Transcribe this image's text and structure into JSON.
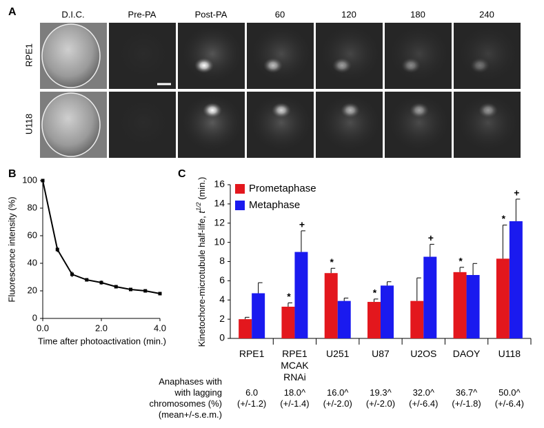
{
  "panel_labels": [
    "A",
    "B",
    "C"
  ],
  "panel_a": {
    "columns": [
      "D.I.C.",
      "Pre-PA",
      "Post-PA",
      "60",
      "120",
      "180",
      "240"
    ],
    "rows": [
      "RPE1",
      "U118"
    ]
  },
  "chart_data": [
    {
      "type": "line",
      "x_label": "Time after photoactivation (min.)",
      "y_label": "Fluorescence intensity (%)",
      "x": [
        0,
        0.5,
        1.0,
        1.5,
        2.0,
        2.5,
        3.0,
        3.5,
        4.0
      ],
      "values": [
        100,
        50,
        32,
        28,
        26,
        23,
        21,
        20,
        18
      ],
      "errors": [
        1,
        2,
        2,
        1,
        1.5,
        1,
        1,
        1,
        1
      ],
      "color": "#000000",
      "xlim": [
        0,
        4
      ],
      "ylim": [
        0,
        100
      ],
      "xticks": [
        {
          "value": 0,
          "label": "0.0"
        },
        {
          "value": 2,
          "label": "2.0"
        },
        {
          "value": 4,
          "label": "4.0"
        }
      ],
      "yticks": [
        0,
        20,
        40,
        60,
        80,
        100
      ]
    },
    {
      "type": "bar",
      "y_label_parts": [
        "Kinetochore-microtubule half-life, ",
        "t",
        "1/2",
        " (min.)"
      ],
      "categories": [
        "RPE1",
        "RPE1\nMCAK\nRNAi",
        "U251",
        "U87",
        "U2OS",
        "DAOY",
        "U118"
      ],
      "series": [
        {
          "name": "Prometaphase",
          "color": "#e3171d",
          "values": [
            2.0,
            3.3,
            6.8,
            3.8,
            3.9,
            6.9,
            8.3
          ],
          "errors": [
            0.2,
            0.4,
            0.5,
            0.3,
            2.4,
            0.5,
            3.5
          ],
          "markers": [
            null,
            "*",
            "*",
            "*",
            null,
            "*",
            "*"
          ]
        },
        {
          "name": "Metaphase",
          "color": "#1a1aef",
          "values": [
            4.7,
            9.0,
            3.9,
            5.5,
            8.5,
            6.6,
            12.2
          ],
          "errors": [
            1.1,
            2.2,
            0.3,
            0.4,
            1.3,
            1.2,
            2.3
          ],
          "markers": [
            null,
            "+",
            null,
            null,
            "+",
            null,
            "+"
          ]
        }
      ],
      "ylim": [
        0,
        16
      ],
      "yticks": [
        0,
        2,
        4,
        6,
        8,
        10,
        12,
        14,
        16
      ],
      "legend": "top-left"
    }
  ],
  "anaphase_table": {
    "header": "Anaphases with\nwith lagging\nchromosomes (%)\n(mean+/-s.e.m.)",
    "cells": [
      "6.0\n(+/-1.2)",
      "18.0^\n(+/-1.4)",
      "16.0^\n(+/-2.0)",
      "19.3^\n(+/-2.0)",
      "32.0^\n(+/-6.4)",
      "36.7^\n(+/-1.8)",
      "50.0^\n(+/-6.4)"
    ]
  }
}
